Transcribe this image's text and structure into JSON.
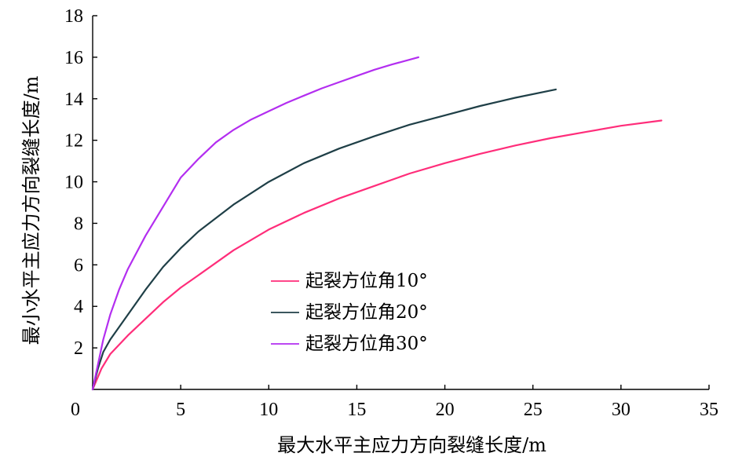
{
  "chart_data": {
    "type": "line",
    "title": "",
    "xlabel": "最大水平主应力方向裂缝长度/m",
    "ylabel": "最小水平主应力方向裂缝长度/m",
    "xlim": [
      0,
      35
    ],
    "ylim": [
      0,
      18
    ],
    "x_ticks": [
      "0",
      "5",
      "10",
      "15",
      "20",
      "25",
      "30",
      "35"
    ],
    "y_ticks": [
      "2",
      "4",
      "6",
      "8",
      "10",
      "12",
      "14",
      "16",
      "18"
    ],
    "grid": false,
    "legend_position": "center",
    "series": [
      {
        "name": "起裂方位角10°",
        "color": "#ff2d7a",
        "x": [
          0.0,
          0.5,
          1.0,
          2.0,
          3.0,
          4.0,
          5.0,
          6.0,
          8.0,
          10.0,
          12.0,
          14.0,
          16.0,
          18.0,
          20.0,
          22.0,
          24.0,
          26.0,
          28.0,
          30.0,
          32.3
        ],
        "y": [
          0.0,
          1.0,
          1.7,
          2.6,
          3.4,
          4.2,
          4.9,
          5.5,
          6.7,
          7.7,
          8.5,
          9.2,
          9.8,
          10.4,
          10.9,
          11.35,
          11.75,
          12.1,
          12.4,
          12.7,
          12.95
        ]
      },
      {
        "name": "起裂方位角20°",
        "color": "#1f3f47",
        "x": [
          0.0,
          0.3,
          0.6,
          1.0,
          2.0,
          3.0,
          4.0,
          5.0,
          6.0,
          8.0,
          10.0,
          12.0,
          14.0,
          16.0,
          18.0,
          20.0,
          22.0,
          24.0,
          26.3
        ],
        "y": [
          0.0,
          1.0,
          1.8,
          2.4,
          3.6,
          4.8,
          5.9,
          6.8,
          7.6,
          8.9,
          10.0,
          10.9,
          11.6,
          12.2,
          12.75,
          13.2,
          13.65,
          14.05,
          14.45
        ]
      },
      {
        "name": "起裂方位角30°",
        "color": "#b32ef0",
        "x": [
          0.0,
          0.3,
          0.6,
          1.0,
          1.5,
          2.0,
          3.0,
          4.0,
          5.0,
          6.0,
          7.0,
          8.0,
          9.0,
          10.0,
          11.0,
          12.0,
          13.0,
          14.0,
          15.0,
          16.0,
          17.0,
          18.5
        ],
        "y": [
          0.0,
          1.2,
          2.4,
          3.6,
          4.8,
          5.8,
          7.4,
          8.8,
          10.2,
          11.1,
          11.9,
          12.5,
          13.0,
          13.4,
          13.8,
          14.15,
          14.5,
          14.8,
          15.1,
          15.4,
          15.65,
          16.0
        ]
      }
    ]
  }
}
